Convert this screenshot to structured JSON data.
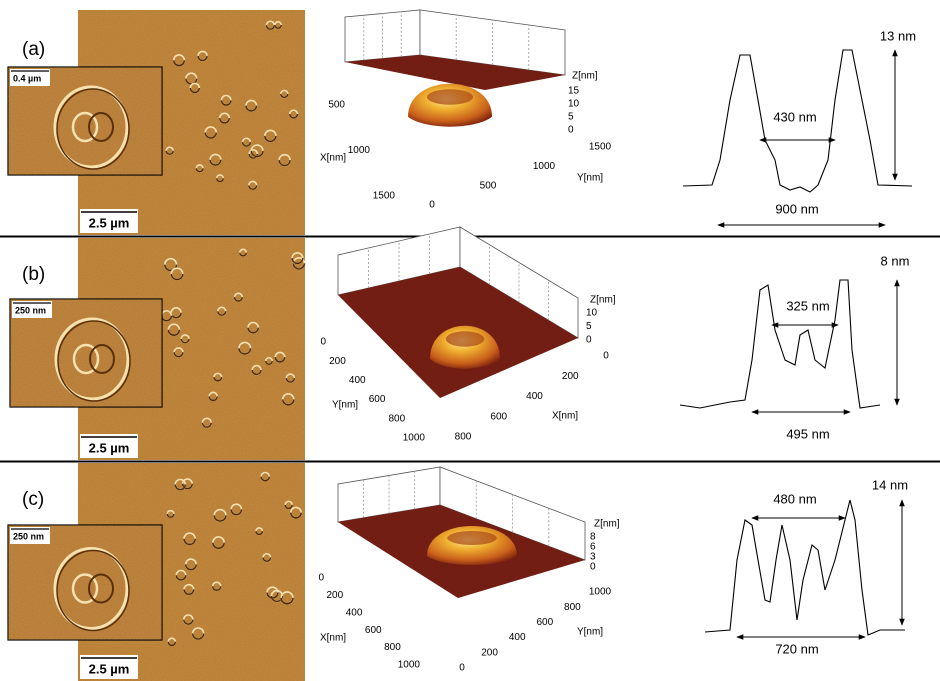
{
  "panels": [
    {
      "label": "(a)",
      "image_scale": "2.5 µm",
      "inset_scale": "0.4 µm",
      "plot3d": {
        "z_label": "Z[nm]",
        "z_ticks": [
          15,
          10,
          5,
          0
        ],
        "left_label": "X[nm]",
        "left_ticks": [
          500,
          1000,
          1500
        ],
        "right_label": "Y[nm]",
        "right_ticks": [
          0,
          500,
          1000,
          1500
        ]
      },
      "profile": {
        "height": "13 nm",
        "inner_width": "430 nm",
        "outer_width": "900 nm"
      }
    },
    {
      "label": "(b)",
      "image_scale": "2.5 µm",
      "inset_scale": "250 nm",
      "plot3d": {
        "z_label": "Z[nm]",
        "z_ticks": [
          10,
          5,
          0
        ],
        "left_label": "Y[nm]",
        "left_ticks": [
          0,
          200,
          400,
          600,
          800,
          1000
        ],
        "right_label": "X[nm]",
        "right_ticks": [
          0,
          200,
          400,
          600,
          800
        ]
      },
      "profile": {
        "height": "8 nm",
        "inner_width": "325 nm",
        "outer_width": "495 nm"
      }
    },
    {
      "label": "(c)",
      "image_scale": "2.5 µm",
      "inset_scale": "250 nm",
      "plot3d": {
        "z_label": "Z[nm]",
        "z_ticks": [
          8,
          6,
          3,
          0
        ],
        "left_label": "X[nm]",
        "left_ticks": [
          0,
          200,
          400,
          600,
          800,
          1000
        ],
        "right_label": "Y[nm]",
        "right_ticks": [
          1000,
          800,
          600,
          400,
          200,
          0
        ]
      },
      "profile": {
        "height": "14 nm",
        "inner_width": "480 nm",
        "outer_width": "720 nm"
      }
    }
  ]
}
